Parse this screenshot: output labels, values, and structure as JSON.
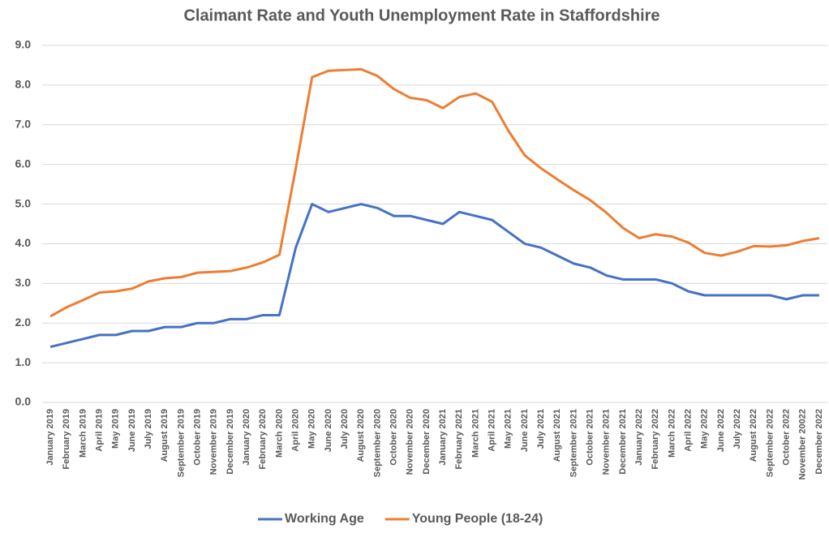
{
  "chart_data": {
    "type": "line",
    "title": "Claimant Rate and Youth Unemployment Rate in Staffordshire",
    "categories": [
      "January 2019",
      "February 2019",
      "March 2019",
      "April 2019",
      "May 2019",
      "June 2019",
      "July 2019",
      "August 2019",
      "September 2019",
      "October 2019",
      "November 2019",
      "December 2019",
      "January 2020",
      "February 2020",
      "March 2020",
      "April 2020",
      "May 2020",
      "June 2020",
      "July 2020",
      "August 2020",
      "September 2020",
      "October 2020",
      "November 2020",
      "December 2020",
      "January 2021",
      "February 2021",
      "March 2021",
      "April 2021",
      "May 2021",
      "June 2021",
      "July 2021",
      "August 2021",
      "September 2021",
      "October 2021",
      "November 2021",
      "December 2021",
      "January 2022",
      "February 2022",
      "March 2022",
      "April 2022",
      "May 2022",
      "June 2022",
      "July 2022",
      "August 2022",
      "September 2022",
      "October 2022",
      "November 20022",
      "December 2022"
    ],
    "series": [
      {
        "name": "Working Age",
        "color": "#4472c4",
        "values": [
          1.4,
          1.5,
          1.6,
          1.7,
          1.7,
          1.8,
          1.8,
          1.9,
          1.9,
          2.0,
          2.0,
          2.1,
          2.1,
          2.2,
          2.2,
          3.9,
          5.0,
          4.8,
          4.9,
          5.0,
          4.9,
          4.7,
          4.7,
          4.6,
          4.5,
          4.8,
          4.7,
          4.6,
          4.3,
          4.0,
          3.9,
          3.7,
          3.5,
          3.4,
          3.2,
          3.1,
          3.1,
          3.1,
          3.0,
          2.8,
          2.7,
          2.7,
          2.7,
          2.7,
          2.7,
          2.6,
          2.7,
          2.7
        ]
      },
      {
        "name": "Young People (18-24)",
        "color": "#ed7d31",
        "values": [
          2.17,
          2.4,
          2.58,
          2.77,
          2.8,
          2.87,
          3.05,
          3.13,
          3.16,
          3.27,
          3.29,
          3.31,
          3.4,
          3.53,
          3.72,
          5.9,
          8.2,
          8.36,
          8.38,
          8.4,
          8.23,
          7.9,
          7.68,
          7.62,
          7.42,
          7.7,
          7.79,
          7.58,
          6.85,
          6.23,
          5.9,
          5.62,
          5.35,
          5.1,
          4.78,
          4.4,
          4.14,
          4.24,
          4.18,
          4.03,
          3.77,
          3.7,
          3.8,
          3.94,
          3.93,
          3.96,
          4.07,
          4.14
        ]
      }
    ],
    "ylim": [
      0,
      9
    ],
    "yticks": [
      {
        "value": 0,
        "label": "0.0"
      },
      {
        "value": 1,
        "label": "1.0"
      },
      {
        "value": 2,
        "label": "2.0"
      },
      {
        "value": 3,
        "label": "3.0"
      },
      {
        "value": 4,
        "label": "4.0"
      },
      {
        "value": 5,
        "label": "5.0"
      },
      {
        "value": 6,
        "label": "6.0"
      },
      {
        "value": 7,
        "label": "7.0"
      },
      {
        "value": 8,
        "label": "8.0"
      },
      {
        "value": 9,
        "label": "9.0"
      }
    ],
    "grid": true,
    "legend": "bottom"
  }
}
